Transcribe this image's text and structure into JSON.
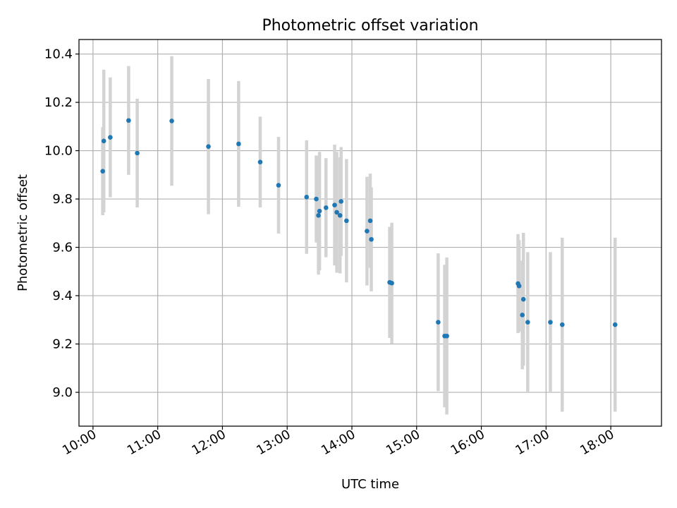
{
  "chart_data": {
    "type": "scatter",
    "title": "Photometric offset variation",
    "xlabel": "UTC time",
    "ylabel": "Photometric offset",
    "xlim": [
      "09:47",
      "18:47"
    ],
    "ylim": [
      8.86,
      10.46
    ],
    "xticks": [
      "10:00",
      "11:00",
      "12:00",
      "13:00",
      "14:00",
      "15:00",
      "16:00",
      "17:00",
      "18:00"
    ],
    "yticks": [
      "9.0",
      "9.2",
      "9.4",
      "9.6",
      "9.8",
      "10.0",
      "10.2",
      "10.4"
    ],
    "grid": true,
    "legend": "none",
    "colors": {
      "marker": "#1f77b4",
      "errorbar": "#d3d3d3",
      "grid": "#b0b0b0"
    },
    "points": [
      {
        "x": "10:09",
        "y": 9.915,
        "yerr": 0.182
      },
      {
        "x": "10:10",
        "y": 10.04,
        "yerr": 0.295
      },
      {
        "x": "10:16",
        "y": 10.055,
        "yerr": 0.248
      },
      {
        "x": "10:33",
        "y": 10.125,
        "yerr": 0.225
      },
      {
        "x": "10:41",
        "y": 9.99,
        "yerr": 0.225
      },
      {
        "x": "11:13",
        "y": 10.123,
        "yerr": 0.268
      },
      {
        "x": "11:47",
        "y": 10.017,
        "yerr": 0.28
      },
      {
        "x": "12:15",
        "y": 10.028,
        "yerr": 0.26
      },
      {
        "x": "12:35",
        "y": 9.953,
        "yerr": 0.188
      },
      {
        "x": "12:52",
        "y": 9.857,
        "yerr": 0.2
      },
      {
        "x": "13:18",
        "y": 9.808,
        "yerr": 0.235
      },
      {
        "x": "13:27",
        "y": 9.8,
        "yerr": 0.18
      },
      {
        "x": "13:29",
        "y": 9.732,
        "yerr": 0.245
      },
      {
        "x": "13:30",
        "y": 9.75,
        "yerr": 0.245
      },
      {
        "x": "13:36",
        "y": 9.764,
        "yerr": 0.205
      },
      {
        "x": "13:44",
        "y": 9.775,
        "yerr": 0.25
      },
      {
        "x": "13:46",
        "y": 9.745,
        "yerr": 0.25
      },
      {
        "x": "13:49",
        "y": 9.732,
        "yerr": 0.24
      },
      {
        "x": "13:50",
        "y": 9.79,
        "yerr": 0.225
      },
      {
        "x": "13:55",
        "y": 9.71,
        "yerr": 0.255
      },
      {
        "x": "14:14",
        "y": 9.667,
        "yerr": 0.225
      },
      {
        "x": "14:17",
        "y": 9.71,
        "yerr": 0.195
      },
      {
        "x": "14:18",
        "y": 9.633,
        "yerr": 0.215
      },
      {
        "x": "14:35",
        "y": 9.455,
        "yerr": 0.23
      },
      {
        "x": "14:37",
        "y": 9.452,
        "yerr": 0.25
      },
      {
        "x": "15:20",
        "y": 9.29,
        "yerr": 0.285
      },
      {
        "x": "15:26",
        "y": 9.233,
        "yerr": 0.295
      },
      {
        "x": "15:28",
        "y": 9.233,
        "yerr": 0.325
      },
      {
        "x": "16:34",
        "y": 9.45,
        "yerr": 0.205
      },
      {
        "x": "16:35",
        "y": 9.44,
        "yerr": 0.19
      },
      {
        "x": "16:38",
        "y": 9.32,
        "yerr": 0.225
      },
      {
        "x": "16:39",
        "y": 9.385,
        "yerr": 0.275
      },
      {
        "x": "16:43",
        "y": 9.29,
        "yerr": 0.29
      },
      {
        "x": "17:04",
        "y": 9.29,
        "yerr": 0.29
      },
      {
        "x": "17:15",
        "y": 9.28,
        "yerr": 0.36
      },
      {
        "x": "18:04",
        "y": 9.28,
        "yerr": 0.36
      }
    ]
  }
}
